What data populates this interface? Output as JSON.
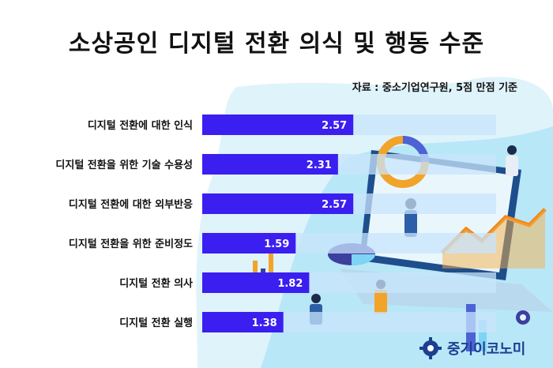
{
  "header": {
    "title": "소상공인 디지털 전환 의식 및 행동 수준",
    "source": "자료 : 중소기업연구원, 5점 만점 기준"
  },
  "brand": {
    "name": "중기이코노미",
    "icon": "gear-icon"
  },
  "colors": {
    "bar": "#3b1ff0",
    "track": "#c8e4fb",
    "bg_light": "#dff3fb",
    "bg_accent": "#38c0f2"
  },
  "chart_data": {
    "type": "bar",
    "orientation": "horizontal",
    "title": "소상공인 디지털 전환 의식 및 행동 수준",
    "categories": [
      "디지털 전환에 대한 인식",
      "디지털 전환을 위한 기술 수용성",
      "디지털 전환에 대한 외부반응",
      "디지털 전환을 위한 준비정도",
      "디지털 전환 의사",
      "디지털 전환 실행"
    ],
    "values": [
      2.57,
      2.31,
      2.57,
      1.59,
      1.82,
      1.38
    ],
    "value_labels": [
      "2.57",
      "2.31",
      "2.57",
      "1.59",
      "1.82",
      "1.38"
    ],
    "xlim": [
      0,
      5
    ],
    "xlabel": "",
    "ylabel": "",
    "grid": false,
    "legend": "none"
  }
}
